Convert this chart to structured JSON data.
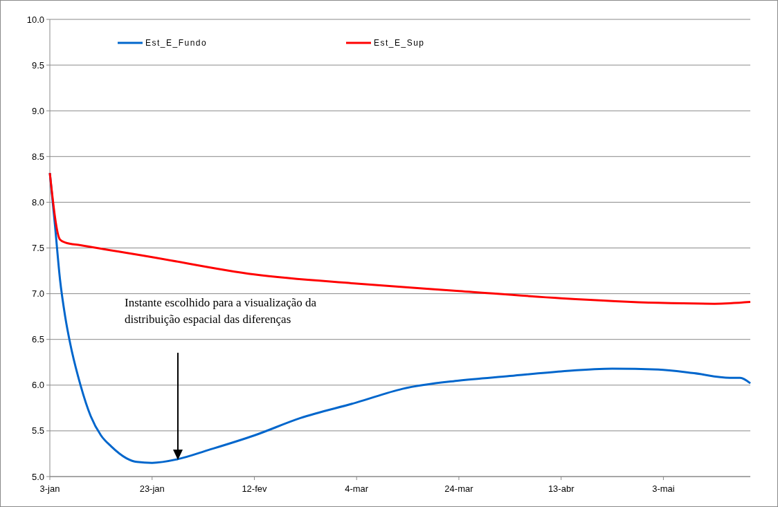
{
  "chart_data": {
    "type": "line",
    "xlim": [
      "--01-03",
      "--05-20"
    ],
    "xticks": [
      {
        "value": "--01-03",
        "label": "3-jan"
      },
      {
        "value": "--01-23",
        "label": "23-jan"
      },
      {
        "value": "--02-12",
        "label": "12-fev"
      },
      {
        "value": "--03-04",
        "label": "4-mar"
      },
      {
        "value": "--03-24",
        "label": "24-mar"
      },
      {
        "value": "--04-13",
        "label": "13-abr"
      },
      {
        "value": "--05-03",
        "label": "3-mai"
      }
    ],
    "ylim": [
      5,
      10
    ],
    "yticks": [
      {
        "value": 5,
        "label": "5.0"
      },
      {
        "value": 5.5,
        "label": "5.5"
      },
      {
        "value": 6,
        "label": "6.0"
      },
      {
        "value": 6.5,
        "label": "6.5"
      },
      {
        "value": 7,
        "label": "7.0"
      },
      {
        "value": 7.5,
        "label": "7.5"
      },
      {
        "value": 8,
        "label": "8.0"
      },
      {
        "value": 8.5,
        "label": "8.5"
      },
      {
        "value": 9,
        "label": "9.0"
      },
      {
        "value": 9.5,
        "label": "9.5"
      },
      {
        "value": 10,
        "label": "10.0"
      }
    ],
    "grid": "y",
    "legend": "top",
    "marker": "none",
    "line_style": "solid",
    "series": [
      {
        "name": "Est_E_Fundo",
        "color": "#0066cc",
        "x": [
          "--01-03",
          "--01-04",
          "--01-05",
          "--01-06",
          "--01-07",
          "--01-09",
          "--01-11",
          "--01-13",
          "--01-15",
          "--01-18",
          "--01-20",
          "--01-23",
          "--01-28",
          "--02-03",
          "--02-12",
          "--02-21",
          "--03-04",
          "--03-13",
          "--03-24",
          "--04-03",
          "--04-13",
          "--04-23",
          "--05-02",
          "--05-09",
          "--05-16",
          "--05-18",
          "--05-20"
        ],
        "values": [
          8.32,
          7.75,
          7.15,
          6.75,
          6.45,
          6.0,
          5.66,
          5.45,
          5.33,
          5.2,
          5.16,
          5.15,
          5.19,
          5.29,
          5.45,
          5.64,
          5.81,
          5.96,
          6.05,
          6.1,
          6.15,
          6.18,
          6.17,
          6.13,
          6.08,
          6.08,
          6.02
        ]
      },
      {
        "name": "Est_E_Sup",
        "color": "#ff0000",
        "x": [
          "--01-03",
          "--01-05",
          "--01-06",
          "--01-09",
          "--01-23",
          "--02-12",
          "--03-04",
          "--03-24",
          "--04-13",
          "--05-02",
          "--05-13",
          "--05-20"
        ],
        "values": [
          8.32,
          7.59,
          7.56,
          7.53,
          7.4,
          7.21,
          7.11,
          7.03,
          6.95,
          6.9,
          6.89,
          6.91
        ]
      }
    ],
    "annotations": [
      "Instante escolhido para a visualização da\ndistribuição espacial das diferenças"
    ]
  }
}
